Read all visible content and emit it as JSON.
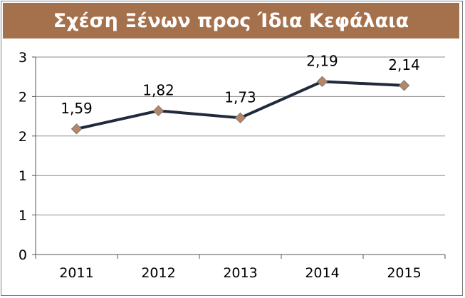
{
  "colors": {
    "title_background": "#a5704c",
    "title_text": "#ffffff",
    "line": "#1f2a3c",
    "marker": "#b98665",
    "gridline": "#8c8c8c",
    "axis": "#555555"
  },
  "chart_data": {
    "type": "line",
    "title": "Σχέση Ξένων προς Ίδια Κεφάλαια",
    "xlabel": "",
    "ylabel": "",
    "categories": [
      "2011",
      "2012",
      "2013",
      "2014",
      "2015"
    ],
    "series": [
      {
        "values": [
          1.59,
          1.82,
          1.73,
          2.19,
          2.14
        ],
        "labels": [
          "1,59",
          "1,82",
          "1,73",
          "2,19",
          "2,14"
        ]
      }
    ],
    "ylim": [
      0,
      2.5
    ],
    "yticks": [
      0,
      0.5,
      1,
      1.5,
      2,
      2.5
    ],
    "ytick_labels": [
      "0",
      "1",
      "1",
      "2",
      "2",
      "3"
    ],
    "grid": true,
    "legend": "none",
    "marker": "diamond"
  }
}
